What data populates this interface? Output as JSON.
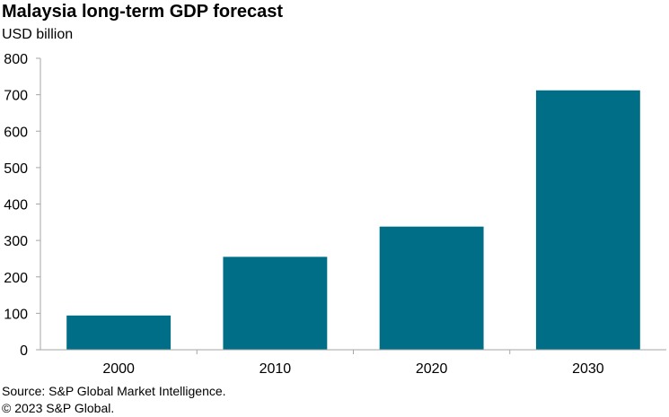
{
  "chart_data": {
    "type": "bar",
    "title": "Malaysia long-term GDP forecast",
    "subtitle": "USD billion",
    "xlabel": "",
    "ylabel": "",
    "categories": [
      "2000",
      "2010",
      "2020",
      "2030"
    ],
    "values": [
      94,
      255,
      338,
      712
    ],
    "ylim": [
      0,
      800
    ],
    "yticks": [
      0,
      100,
      200,
      300,
      400,
      500,
      600,
      700,
      800
    ],
    "grid": false,
    "legend": "none",
    "bar_color": "#006E87",
    "axis_color": "#a6a6a6"
  },
  "footer": {
    "source": "Source: S&P Global Market Intelligence.",
    "copyright": "© 2023 S&P Global."
  }
}
